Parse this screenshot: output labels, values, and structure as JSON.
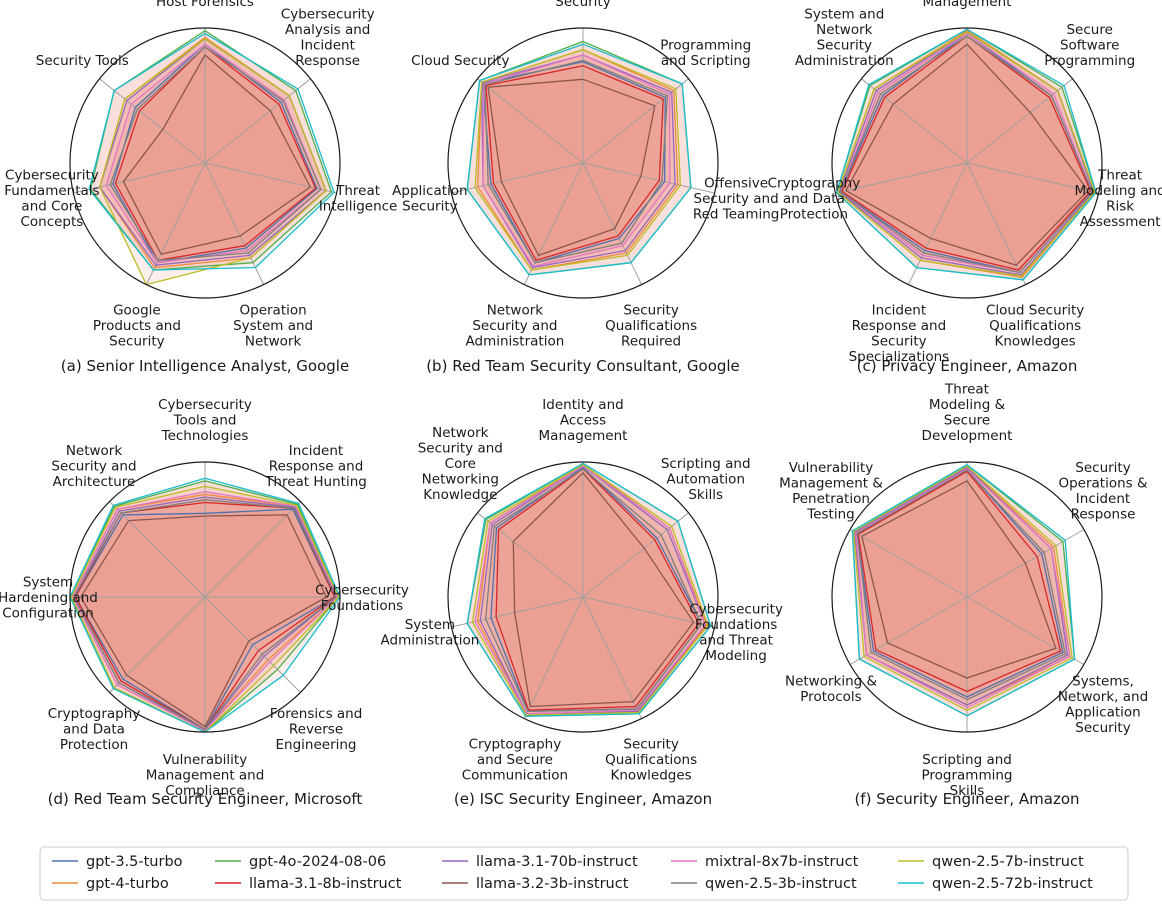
{
  "chart_data": {
    "type": "radar",
    "legend_position": "bottom",
    "series_styles": [
      {
        "name": "gpt-3.5-turbo",
        "color": "#4c72b0"
      },
      {
        "name": "gpt-4-turbo",
        "color": "#ef8a3a"
      },
      {
        "name": "gpt-4o-2024-08-06",
        "color": "#4daf4a"
      },
      {
        "name": "llama-3.1-8b-instruct",
        "color": "#d62728"
      },
      {
        "name": "llama-3.1-70b-instruct",
        "color": "#9467bd"
      },
      {
        "name": "llama-3.2-3b-instruct",
        "color": "#8c564b"
      },
      {
        "name": "mixtral-8x7b-instruct",
        "color": "#e377c2"
      },
      {
        "name": "qwen-2.5-3b-instruct",
        "color": "#7f7f7f"
      },
      {
        "name": "qwen-2.5-7b-instruct",
        "color": "#bcbd22"
      },
      {
        "name": "qwen-2.5-72b-instruct",
        "color": "#17becf"
      }
    ],
    "charts": [
      {
        "caption": "(a) Senior Intelligence Analyst, Google",
        "axes": [
          "Network and\nHost Forensics",
          "Cybersecurity\nAnalysis and\nIncident\nResponse",
          "Threat\nIntelligence",
          "Operation\nSystem and\nNetwork",
          "Google\nProducts and\nSecurity",
          "Cybersecurity\nFundamentals\nand Core\nConcepts",
          "Security Tools"
        ],
        "series": [
          {
            "name": "gpt-3.5-turbo",
            "values": [
              0.88,
              0.72,
              0.85,
              0.7,
              0.82,
              0.7,
              0.66
            ]
          },
          {
            "name": "gpt-4-turbo",
            "values": [
              0.93,
              0.8,
              0.92,
              0.78,
              0.86,
              0.8,
              0.76
            ]
          },
          {
            "name": "gpt-4o-2024-08-06",
            "values": [
              0.98,
              0.86,
              0.96,
              0.82,
              0.88,
              0.87,
              0.86
            ]
          },
          {
            "name": "llama-3.1-8b-instruct",
            "values": [
              0.86,
              0.7,
              0.84,
              0.68,
              0.8,
              0.68,
              0.62
            ]
          },
          {
            "name": "llama-3.1-70b-instruct",
            "values": [
              0.92,
              0.8,
              0.92,
              0.76,
              0.84,
              0.8,
              0.74
            ]
          },
          {
            "name": "llama-3.2-3b-instruct",
            "values": [
              0.8,
              0.62,
              0.8,
              0.6,
              0.75,
              0.62,
              0.4
            ]
          },
          {
            "name": "mixtral-8x7b-instruct",
            "values": [
              0.88,
              0.75,
              0.88,
              0.72,
              0.82,
              0.75,
              0.7
            ]
          },
          {
            "name": "qwen-2.5-3b-instruct",
            "values": [
              0.86,
              0.74,
              0.88,
              0.74,
              0.8,
              0.72,
              0.64
            ]
          },
          {
            "name": "qwen-2.5-7b-instruct",
            "values": [
              0.92,
              0.8,
              0.92,
              0.78,
              1.0,
              0.8,
              0.76
            ]
          },
          {
            "name": "qwen-2.5-72b-instruct",
            "values": [
              0.96,
              0.88,
              0.98,
              0.86,
              0.88,
              0.88,
              0.86
            ]
          }
        ]
      },
      {
        "caption": "(b) Red Team Security Consultant, Google",
        "axes": [
          "Operating\nSystem\nSecurity",
          "Programming\nand Scripting",
          "Offensive\nSecurity and\nRed Teaming",
          "Security\nQualifications\nRequired",
          "Network\nSecurity and\nAdministration",
          "Application\nSecurity",
          "Cloud Security"
        ],
        "series": [
          {
            "name": "gpt-3.5-turbo",
            "values": [
              0.75,
              0.78,
              0.62,
              0.62,
              0.82,
              0.7,
              0.95
            ]
          },
          {
            "name": "gpt-4-turbo",
            "values": [
              0.84,
              0.86,
              0.72,
              0.74,
              0.88,
              0.8,
              0.96
            ]
          },
          {
            "name": "gpt-4o-2024-08-06",
            "values": [
              0.9,
              0.94,
              0.82,
              0.82,
              0.92,
              0.88,
              0.98
            ]
          },
          {
            "name": "llama-3.1-8b-instruct",
            "values": [
              0.72,
              0.76,
              0.58,
              0.6,
              0.8,
              0.68,
              0.92
            ]
          },
          {
            "name": "llama-3.1-70b-instruct",
            "values": [
              0.8,
              0.84,
              0.7,
              0.72,
              0.86,
              0.76,
              0.96
            ]
          },
          {
            "name": "llama-3.2-3b-instruct",
            "values": [
              0.62,
              0.68,
              0.44,
              0.54,
              0.76,
              0.62,
              0.9
            ]
          },
          {
            "name": "mixtral-8x7b-instruct",
            "values": [
              0.8,
              0.82,
              0.66,
              0.68,
              0.85,
              0.76,
              0.94
            ]
          },
          {
            "name": "qwen-2.5-3b-instruct",
            "values": [
              0.76,
              0.8,
              0.6,
              0.66,
              0.82,
              0.72,
              0.93
            ]
          },
          {
            "name": "qwen-2.5-7b-instruct",
            "values": [
              0.84,
              0.88,
              0.74,
              0.76,
              0.88,
              0.82,
              0.96
            ]
          },
          {
            "name": "qwen-2.5-72b-instruct",
            "values": [
              0.88,
              0.94,
              0.82,
              0.82,
              0.92,
              0.88,
              0.98
            ]
          }
        ]
      },
      {
        "caption": "(c) Privacy Engineer, Amazon",
        "axes": [
          "Identity and\nAccess\nManagement",
          "Secure\nSoftware\nProgramming",
          "Threat\nModeling and\nRisk\nAssessment",
          "Cloud Security\nQualifications\nKnowledges",
          "Incident\nResponse and\nSecurity\nSpecializations",
          "Cryptography\nand Data\nProtection",
          "System and\nNetwork\nSecurity\nAdministration"
        ],
        "series": [
          {
            "name": "gpt-3.5-turbo",
            "values": [
              0.96,
              0.8,
              0.95,
              0.9,
              0.72,
              0.96,
              0.8
            ]
          },
          {
            "name": "gpt-4-turbo",
            "values": [
              0.98,
              0.86,
              0.97,
              0.94,
              0.8,
              0.98,
              0.88
            ]
          },
          {
            "name": "gpt-4o-2024-08-06",
            "values": [
              0.99,
              0.9,
              0.98,
              0.96,
              0.86,
              0.99,
              0.92
            ]
          },
          {
            "name": "llama-3.1-8b-instruct",
            "values": [
              0.94,
              0.78,
              0.94,
              0.88,
              0.7,
              0.95,
              0.78
            ]
          },
          {
            "name": "llama-3.1-70b-instruct",
            "values": [
              0.97,
              0.86,
              0.96,
              0.92,
              0.78,
              0.97,
              0.86
            ]
          },
          {
            "name": "llama-3.2-3b-instruct",
            "values": [
              0.88,
              0.6,
              0.92,
              0.84,
              0.62,
              0.92,
              0.7
            ]
          },
          {
            "name": "mixtral-8x7b-instruct",
            "values": [
              0.96,
              0.82,
              0.95,
              0.9,
              0.76,
              0.96,
              0.84
            ]
          },
          {
            "name": "qwen-2.5-3b-instruct",
            "values": [
              0.94,
              0.8,
              0.95,
              0.9,
              0.74,
              0.96,
              0.82
            ]
          },
          {
            "name": "qwen-2.5-7b-instruct",
            "values": [
              0.97,
              0.86,
              0.97,
              0.93,
              0.8,
              0.98,
              0.88
            ]
          },
          {
            "name": "qwen-2.5-72b-instruct",
            "values": [
              0.99,
              0.92,
              0.98,
              0.96,
              0.86,
              0.99,
              0.93
            ]
          }
        ]
      },
      {
        "caption": "(d) Red Team Security Engineer, Microsoft",
        "axes": [
          "Cybersecurity\nTools and\nTechnologies",
          "Incident\nResponse and\nThreat Hunting",
          "Cybersecurity\nFoundations",
          "Forensics and\nReverse\nEngineering",
          "Vulnerability\nManagement and\nCompliance",
          "Cryptography\nand Data\nProtection",
          "System\nHardening and\nConfiguration",
          "Network\nSecurity and\nArchitecture"
        ],
        "series": [
          {
            "name": "gpt-3.5-turbo",
            "values": [
              0.62,
              0.92,
              0.96,
              0.5,
              0.98,
              0.86,
              0.96,
              0.86
            ]
          },
          {
            "name": "gpt-4-turbo",
            "values": [
              0.76,
              0.95,
              0.98,
              0.66,
              0.99,
              0.92,
              0.98,
              0.92
            ]
          },
          {
            "name": "gpt-4o-2024-08-06",
            "values": [
              0.86,
              0.97,
              0.99,
              0.76,
              1.0,
              0.96,
              0.99,
              0.95
            ]
          },
          {
            "name": "llama-3.1-8b-instruct",
            "values": [
              0.7,
              0.93,
              0.96,
              0.56,
              0.98,
              0.88,
              0.96,
              0.88
            ]
          },
          {
            "name": "llama-3.1-70b-instruct",
            "values": [
              0.74,
              0.94,
              0.97,
              0.62,
              0.99,
              0.9,
              0.97,
              0.9
            ]
          },
          {
            "name": "llama-3.2-3b-instruct",
            "values": [
              0.6,
              0.86,
              0.9,
              0.46,
              0.96,
              0.82,
              0.92,
              0.8
            ]
          },
          {
            "name": "mixtral-8x7b-instruct",
            "values": [
              0.78,
              0.95,
              0.98,
              0.68,
              0.99,
              0.92,
              0.98,
              0.92
            ]
          },
          {
            "name": "qwen-2.5-3b-instruct",
            "values": [
              0.72,
              0.93,
              0.97,
              0.6,
              0.98,
              0.9,
              0.97,
              0.88
            ]
          },
          {
            "name": "qwen-2.5-7b-instruct",
            "values": [
              0.82,
              0.96,
              0.99,
              0.72,
              1.0,
              0.95,
              0.99,
              0.94
            ]
          },
          {
            "name": "qwen-2.5-72b-instruct",
            "values": [
              0.88,
              0.98,
              1.0,
              0.82,
              1.0,
              0.96,
              1.0,
              0.96
            ]
          }
        ]
      },
      {
        "caption": "(e) ISC Security Engineer, Amazon",
        "axes": [
          "Identity and\nAccess\nManagement",
          "Scripting and\nAutomation\nSkills",
          "Cybersecurity\nFoundations\nand Threat\nModeling",
          "Security\nQualifications\nKnowledges",
          "Cryptography\nand Secure\nCommunication",
          "System\nAdministration",
          "Network\nSecurity and\nCore\nNetworking\nKnowledge"
        ],
        "series": [
          {
            "name": "gpt-3.5-turbo",
            "values": [
              0.96,
              0.7,
              0.9,
              0.92,
              0.94,
              0.7,
              0.82
            ]
          },
          {
            "name": "gpt-4-turbo",
            "values": [
              0.98,
              0.82,
              0.94,
              0.94,
              0.96,
              0.8,
              0.88
            ]
          },
          {
            "name": "gpt-4o-2024-08-06",
            "values": [
              0.99,
              0.9,
              0.97,
              0.96,
              0.98,
              0.88,
              0.92
            ]
          },
          {
            "name": "llama-3.1-8b-instruct",
            "values": [
              0.95,
              0.68,
              0.88,
              0.9,
              0.93,
              0.66,
              0.8
            ]
          },
          {
            "name": "llama-3.1-70b-instruct",
            "values": [
              0.97,
              0.8,
              0.93,
              0.94,
              0.96,
              0.78,
              0.86
            ]
          },
          {
            "name": "llama-3.2-3b-instruct",
            "values": [
              0.92,
              0.58,
              0.84,
              0.86,
              0.9,
              0.52,
              0.66
            ]
          },
          {
            "name": "mixtral-8x7b-instruct",
            "values": [
              0.97,
              0.82,
              0.93,
              0.93,
              0.96,
              0.82,
              0.88
            ]
          },
          {
            "name": "qwen-2.5-3b-instruct",
            "values": [
              0.95,
              0.74,
              0.9,
              0.92,
              0.94,
              0.74,
              0.84
            ]
          },
          {
            "name": "qwen-2.5-7b-instruct",
            "values": [
              0.98,
              0.84,
              0.95,
              0.95,
              0.97,
              0.84,
              0.9
            ]
          },
          {
            "name": "qwen-2.5-72b-instruct",
            "values": [
              0.99,
              0.9,
              0.97,
              0.96,
              0.98,
              0.88,
              0.93
            ]
          }
        ]
      },
      {
        "caption": "(f) Security Engineer, Amazon",
        "axes": [
          "Threat\nModeling &\nSecure\nDevelopment",
          "Security\nOperations &\nIncident\nResponse",
          "Systems,\nNetwork, and\nApplication\nSecurity",
          "Scripting and\nProgramming\nSkills",
          "Networking &\nProtocols",
          "Vulnerability\nManagement &\nPenetration\nTesting"
        ],
        "series": [
          {
            "name": "gpt-3.5-turbo",
            "values": [
              0.94,
              0.64,
              0.82,
              0.74,
              0.8,
              0.94
            ]
          },
          {
            "name": "gpt-4-turbo",
            "values": [
              0.96,
              0.74,
              0.88,
              0.8,
              0.86,
              0.96
            ]
          },
          {
            "name": "gpt-4o-2024-08-06",
            "values": [
              0.98,
              0.82,
              0.92,
              0.88,
              0.92,
              0.98
            ]
          },
          {
            "name": "llama-3.1-8b-instruct",
            "values": [
              0.93,
              0.6,
              0.8,
              0.7,
              0.78,
              0.93
            ]
          },
          {
            "name": "llama-3.1-70b-instruct",
            "values": [
              0.96,
              0.72,
              0.86,
              0.8,
              0.86,
              0.96
            ]
          },
          {
            "name": "llama-3.2-3b-instruct",
            "values": [
              0.86,
              0.5,
              0.76,
              0.6,
              0.68,
              0.9
            ]
          },
          {
            "name": "mixtral-8x7b-instruct",
            "values": [
              0.95,
              0.72,
              0.88,
              0.82,
              0.86,
              0.95
            ]
          },
          {
            "name": "qwen-2.5-3b-instruct",
            "values": [
              0.94,
              0.66,
              0.84,
              0.76,
              0.82,
              0.94
            ]
          },
          {
            "name": "qwen-2.5-7b-instruct",
            "values": [
              0.97,
              0.76,
              0.9,
              0.84,
              0.88,
              0.97
            ]
          },
          {
            "name": "qwen-2.5-72b-instruct",
            "values": [
              0.98,
              0.84,
              0.92,
              0.88,
              0.92,
              0.98
            ]
          }
        ]
      }
    ]
  },
  "legend": {
    "items": [
      {
        "label": "gpt-3.5-turbo",
        "color": "#4c72b0"
      },
      {
        "label": "gpt-4o-2024-08-06",
        "color": "#4daf4a"
      },
      {
        "label": "llama-3.1-70b-instruct",
        "color": "#9467bd"
      },
      {
        "label": "mixtral-8x7b-instruct",
        "color": "#e377c2"
      },
      {
        "label": "qwen-2.5-7b-instruct",
        "color": "#bcbd22"
      },
      {
        "label": "gpt-4-turbo",
        "color": "#ef8a3a"
      },
      {
        "label": "llama-3.1-8b-instruct",
        "color": "#d62728"
      },
      {
        "label": "llama-3.2-3b-instruct",
        "color": "#8c564b"
      },
      {
        "label": "qwen-2.5-3b-instruct",
        "color": "#7f7f7f"
      },
      {
        "label": "qwen-2.5-72b-instruct",
        "color": "#17becf"
      }
    ]
  },
  "colors": {
    "fill": "#e8847a",
    "grid": "#a0a0a0",
    "outer_ring": "#1a1a1a"
  }
}
